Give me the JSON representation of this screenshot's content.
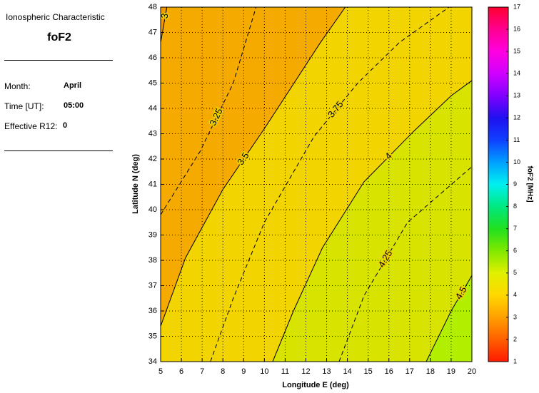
{
  "panel": {
    "heading": "Ionospheric Characteristic",
    "characteristic": "foF2",
    "fields": [
      {
        "label": "Month:",
        "value": "April"
      },
      {
        "label": "Time [UT]:",
        "value": "05:00"
      },
      {
        "label": "Effective R12:",
        "value": "0"
      }
    ]
  },
  "chart_data": {
    "type": "contour",
    "xlabel": "Longitude E (deg)",
    "ylabel": "Latitude N (deg)",
    "xlim": [
      5,
      20
    ],
    "ylim": [
      34,
      48
    ],
    "xticks": [
      5,
      6,
      7,
      8,
      9,
      10,
      11,
      12,
      13,
      14,
      15,
      16,
      17,
      18,
      19,
      20
    ],
    "yticks": [
      34,
      35,
      36,
      37,
      38,
      39,
      40,
      41,
      42,
      43,
      44,
      45,
      46,
      47,
      48
    ],
    "grid": true,
    "background": "#f2d400",
    "contours": [
      {
        "level": 3,
        "style": "solid",
        "fill": "#f09800",
        "x": [
          5,
          5.15,
          5.3
        ],
        "y": [
          46.6,
          47.3,
          48
        ]
      },
      {
        "level": 3.25,
        "style": "dashed",
        "x": [
          5,
          6.9,
          8.5,
          9.6
        ],
        "y": [
          39.8,
          42.3,
          45,
          48
        ]
      },
      {
        "level": 3.5,
        "style": "solid",
        "fill": "#f5aa00",
        "x": [
          5,
          6.2,
          8,
          10,
          12.7,
          13.9
        ],
        "y": [
          35.4,
          38.1,
          40.8,
          43.2,
          46.6,
          48
        ]
      },
      {
        "level": 3.75,
        "style": "dashed",
        "x": [
          7.4,
          8.5,
          10,
          12.4,
          14.5,
          16.5,
          18.9
        ],
        "y": [
          34,
          36.5,
          39.5,
          42.9,
          45,
          46.6,
          48
        ]
      },
      {
        "level": 4,
        "style": "solid",
        "fill": "#d8e400",
        "x": [
          10.4,
          11.4,
          12.8,
          14.8,
          17.2,
          19,
          20
        ],
        "y": [
          34,
          36,
          38.5,
          41.1,
          43.1,
          44.5,
          45.1
        ]
      },
      {
        "level": 4.25,
        "style": "dashed",
        "x": [
          13.6,
          14.8,
          16.9,
          20
        ],
        "y": [
          34,
          36.6,
          39.5,
          41.7
        ]
      },
      {
        "level": 4.5,
        "style": "solid",
        "fill": "#b2ee00",
        "x": [
          17.8,
          19,
          20
        ],
        "y": [
          34,
          36,
          37.4
        ]
      }
    ],
    "colorbar": {
      "label": "foF2 [MHz]",
      "lim": [
        1,
        17
      ],
      "ticks": [
        1,
        2,
        3,
        4,
        5,
        6,
        7,
        8,
        9,
        10,
        11,
        12,
        13,
        14,
        15,
        16,
        17
      ],
      "colors": [
        "#ff1a00",
        "#ff6000",
        "#ffa000",
        "#ffd800",
        "#e0f000",
        "#80e800",
        "#20e020",
        "#00e880",
        "#00f0f0",
        "#00a0ff",
        "#1040ff",
        "#2010f0",
        "#8000ff",
        "#d000ff",
        "#ff00e0",
        "#ff0090",
        "#ff0030"
      ]
    }
  }
}
